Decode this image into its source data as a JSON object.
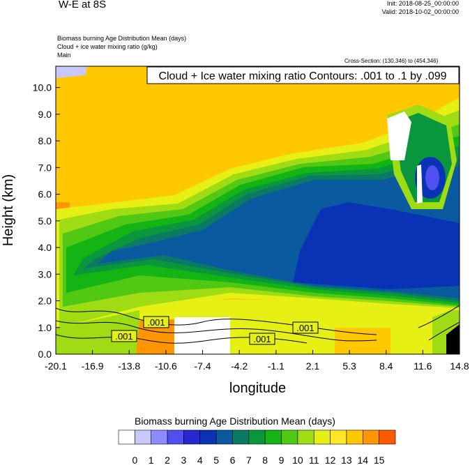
{
  "header": {
    "title": "W-E at 8S",
    "init": "Init: 2018-08-25_00:00:00",
    "valid": "Valid: 2018-10-02_00:00:00",
    "fields": [
      "Biomass burning Age Distribution Mean    (days)",
      "Cloud + ice water mixing ratio    (g/kg)",
      "Main"
    ],
    "cross_section": "Cross-Section: (130,346) to (454,346)"
  },
  "chart_data": {
    "type": "heatmap",
    "title": "W-E at 8S",
    "xlabel": "longitude",
    "ylabel": "Height (km)",
    "x_ticks": [
      "-20.1",
      "-16.9",
      "-13.8",
      "-10.6",
      "-7.4",
      "-4.2",
      "-1.1",
      "2.1",
      "5.3",
      "8.4",
      "11.6",
      "14.8"
    ],
    "y_ticks": [
      "0.0",
      "1.0",
      "2.0",
      "3.0",
      "4.0",
      "5.0",
      "6.0",
      "7.0",
      "8.0",
      "9.0",
      "10.0"
    ],
    "xlim": [
      -20.1,
      14.8
    ],
    "ylim": [
      0,
      10.8
    ],
    "contour_label": "Cloud + Ice water mixing ratio Contours: .001 to .1 by .099",
    "contour_level_labels": [
      ".001",
      ".001",
      ".001",
      ".001"
    ],
    "colorbar": {
      "title": "Biomass burning Age Distribution Mean  (days)",
      "labels": [
        "0",
        "1",
        "2",
        "3",
        "4",
        "5",
        "6",
        "7",
        "8",
        "9",
        "10",
        "11",
        "12",
        "13",
        "14",
        "15"
      ],
      "colors": [
        "#ffffff",
        "#c8c8ff",
        "#8c8cff",
        "#5050f0",
        "#2828d2",
        "#0a32b4",
        "#0a5aa0",
        "#0a7a64",
        "#0a963c",
        "#14b414",
        "#50c814",
        "#a0dc14",
        "#e6f014",
        "#ffe628",
        "#ffc800",
        "#ff9600",
        "#ff5a00",
        "#ff0000"
      ]
    },
    "field_description": "Age (days): ~12-13 aloft, ~3-6 in mid-level plume spanning 2-7 km, ~10-12 near surface"
  }
}
